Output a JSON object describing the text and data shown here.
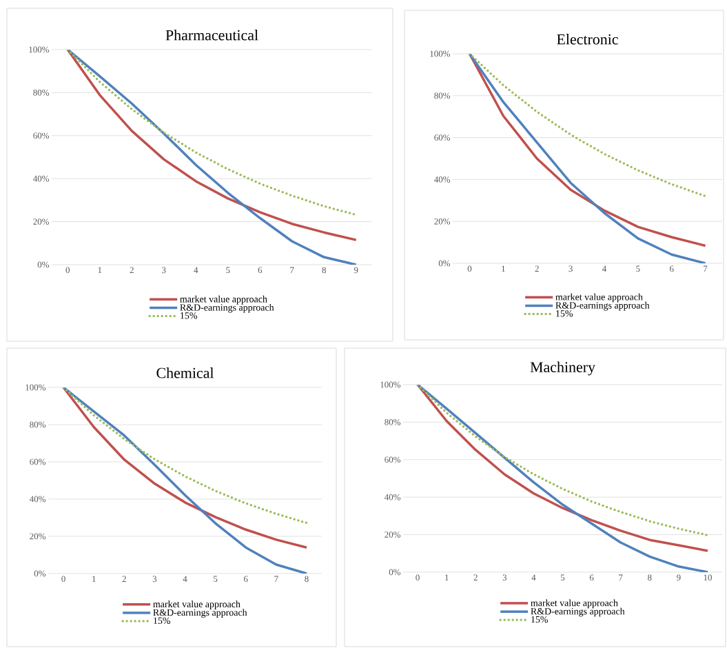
{
  "chart_data": [
    {
      "type": "line",
      "title": "Pharmaceutical",
      "categories": [
        "0",
        "1",
        "2",
        "3",
        "4",
        "5",
        "6",
        "7",
        "8",
        "9"
      ],
      "ylim": [
        0,
        100
      ],
      "yticks": [
        {
          "value": 0,
          "label": "0%"
        },
        {
          "value": 20,
          "label": "20%"
        },
        {
          "value": 40,
          "label": "40%"
        },
        {
          "value": 60,
          "label": "60%"
        },
        {
          "value": 80,
          "label": "80%"
        },
        {
          "value": 100,
          "label": "100%"
        }
      ],
      "grid": "y",
      "legend": "bottom",
      "series": [
        {
          "name": "market value approach",
          "color": "#c0504d",
          "line_style": "solid",
          "values": [
            100,
            78.9,
            62.2,
            49,
            38.8,
            30.8,
            24.4,
            19,
            15,
            11.5
          ]
        },
        {
          "name": "R&D-earnings approach",
          "color": "#4f81bd",
          "line_style": "solid",
          "values": [
            100,
            87.6,
            74.9,
            61,
            46.4,
            33.4,
            21.7,
            10.9,
            3.5,
            0
          ]
        },
        {
          "name": "15%",
          "color": "#9bbb59",
          "line_style": "dotted",
          "values": [
            100,
            85,
            72.3,
            61.4,
            52.2,
            44.4,
            37.7,
            32.1,
            27.2,
            23.2
          ]
        }
      ]
    },
    {
      "type": "line",
      "title": "Electronic",
      "categories": [
        "0",
        "1",
        "2",
        "3",
        "4",
        "5",
        "6",
        "7"
      ],
      "ylim": [
        0,
        100
      ],
      "yticks": [
        {
          "value": 0,
          "label": "0%"
        },
        {
          "value": 20,
          "label": "20%"
        },
        {
          "value": 40,
          "label": "40%"
        },
        {
          "value": 60,
          "label": "60%"
        },
        {
          "value": 80,
          "label": "80%"
        },
        {
          "value": 100,
          "label": "100%"
        }
      ],
      "grid": "y",
      "legend": "bottom",
      "series": [
        {
          "name": "market value approach",
          "color": "#c0504d",
          "line_style": "solid",
          "values": [
            100,
            70.4,
            50,
            35.1,
            25.2,
            17.4,
            12.5,
            8.4
          ]
        },
        {
          "name": "R&D-earnings approach",
          "color": "#4f81bd",
          "line_style": "solid",
          "values": [
            100,
            77,
            57.7,
            38.4,
            24,
            11.9,
            4.2,
            0
          ]
        },
        {
          "name": "15%",
          "color": "#9bbb59",
          "line_style": "dotted",
          "values": [
            100,
            85,
            72.3,
            61.4,
            52.2,
            44.4,
            37.7,
            32.1
          ]
        }
      ]
    },
    {
      "type": "line",
      "title": "Chemical",
      "categories": [
        "0",
        "1",
        "2",
        "3",
        "4",
        "5",
        "6",
        "7",
        "8"
      ],
      "ylim": [
        0,
        100
      ],
      "yticks": [
        {
          "value": 0,
          "label": "0%"
        },
        {
          "value": 20,
          "label": "20%"
        },
        {
          "value": 40,
          "label": "40%"
        },
        {
          "value": 60,
          "label": "60%"
        },
        {
          "value": 80,
          "label": "80%"
        },
        {
          "value": 100,
          "label": "100%"
        }
      ],
      "grid": "y",
      "legend": "bottom",
      "series": [
        {
          "name": "market value approach",
          "color": "#c0504d",
          "line_style": "solid",
          "values": [
            100,
            78.7,
            61.2,
            48.3,
            38.2,
            30.3,
            23.6,
            18.2,
            14
          ]
        },
        {
          "name": "R&D-earnings approach",
          "color": "#4f81bd",
          "line_style": "solid",
          "values": [
            100,
            87.1,
            74.2,
            58.4,
            42.1,
            27,
            14,
            4.8,
            0
          ]
        },
        {
          "name": "15%",
          "color": "#9bbb59",
          "line_style": "dotted",
          "values": [
            100,
            85,
            72.3,
            61.4,
            52.2,
            44.4,
            37.7,
            32.1,
            27.2
          ]
        }
      ]
    },
    {
      "type": "line",
      "title": "Machinery",
      "categories": [
        "0",
        "1",
        "2",
        "3",
        "4",
        "5",
        "6",
        "7",
        "8",
        "9",
        "10"
      ],
      "ylim": [
        0,
        100
      ],
      "yticks": [
        {
          "value": 0,
          "label": "0%"
        },
        {
          "value": 20,
          "label": "20%"
        },
        {
          "value": 40,
          "label": "40%"
        },
        {
          "value": 60,
          "label": "60%"
        },
        {
          "value": 80,
          "label": "80%"
        },
        {
          "value": 100,
          "label": "100%"
        }
      ],
      "grid": "y",
      "legend": "bottom",
      "series": [
        {
          "name": "market value approach",
          "color": "#c0504d",
          "line_style": "solid",
          "values": [
            100,
            80.6,
            65.2,
            52.1,
            42,
            34.2,
            27.7,
            22.1,
            17.2,
            14.3,
            11.4
          ]
        },
        {
          "name": "R&D-earnings approach",
          "color": "#4f81bd",
          "line_style": "solid",
          "values": [
            100,
            87.2,
            74.1,
            61,
            47.9,
            36,
            25.9,
            15.8,
            8.3,
            3,
            0
          ]
        },
        {
          "name": "15%",
          "color": "#9bbb59",
          "line_style": "dotted",
          "values": [
            100,
            85,
            72.3,
            61.4,
            52.2,
            44.4,
            37.7,
            32.1,
            27.2,
            23.2,
            19.7
          ]
        }
      ]
    }
  ]
}
